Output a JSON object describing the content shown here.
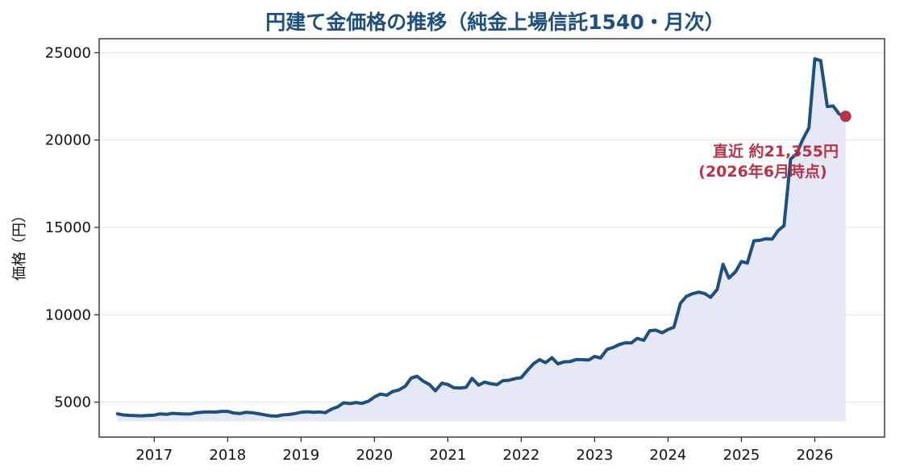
{
  "chart_data": {
    "type": "area",
    "title": "円建て金価格の推移（純金上場信託1540・月次）",
    "xlabel": "",
    "ylabel": "価格（円）",
    "xlim": [
      2016.25,
      2026.95
    ],
    "ylim": [
      3000,
      25800
    ],
    "y_ticks": [
      5000,
      10000,
      15000,
      20000,
      25000
    ],
    "x_ticks": [
      2017,
      2018,
      2019,
      2020,
      2021,
      2022,
      2023,
      2024,
      2025,
      2026
    ],
    "grid": "horizontal",
    "line_color": "#1d4f80",
    "fill_color": "#e6e8f5",
    "fill_baseline": 3900,
    "marker_color": "#b8324a",
    "x": [
      2016.5,
      2016.58,
      2016.67,
      2016.75,
      2016.83,
      2016.92,
      2017.0,
      2017.08,
      2017.17,
      2017.25,
      2017.33,
      2017.42,
      2017.5,
      2017.58,
      2017.67,
      2017.75,
      2017.83,
      2017.92,
      2018.0,
      2018.08,
      2018.17,
      2018.25,
      2018.33,
      2018.42,
      2018.5,
      2018.58,
      2018.67,
      2018.75,
      2018.83,
      2018.92,
      2019.0,
      2019.08,
      2019.17,
      2019.25,
      2019.33,
      2019.42,
      2019.5,
      2019.58,
      2019.67,
      2019.75,
      2019.83,
      2019.92,
      2020.0,
      2020.08,
      2020.17,
      2020.25,
      2020.33,
      2020.42,
      2020.5,
      2020.58,
      2020.67,
      2020.75,
      2020.83,
      2020.92,
      2021.0,
      2021.08,
      2021.17,
      2021.25,
      2021.33,
      2021.42,
      2021.5,
      2021.58,
      2021.67,
      2021.75,
      2021.83,
      2021.92,
      2022.0,
      2022.08,
      2022.17,
      2022.25,
      2022.33,
      2022.42,
      2022.5,
      2022.58,
      2022.67,
      2022.75,
      2022.83,
      2022.92,
      2023.0,
      2023.08,
      2023.17,
      2023.25,
      2023.33,
      2023.42,
      2023.5,
      2023.58,
      2023.67,
      2023.75,
      2023.83,
      2023.92,
      2024.0,
      2024.08,
      2024.17,
      2024.25,
      2024.33,
      2024.42,
      2024.5,
      2024.58,
      2024.67,
      2024.75,
      2024.83,
      2024.92,
      2025.0,
      2025.08,
      2025.17,
      2025.25,
      2025.33,
      2025.42,
      2025.5,
      2025.58,
      2025.67,
      2025.75,
      2025.83,
      2025.92,
      2026.0,
      2026.08,
      2026.17,
      2026.25,
      2026.33,
      2026.42
    ],
    "values": [
      4330,
      4270,
      4240,
      4230,
      4220,
      4240,
      4260,
      4330,
      4300,
      4360,
      4340,
      4320,
      4330,
      4400,
      4430,
      4440,
      4430,
      4470,
      4470,
      4380,
      4350,
      4420,
      4400,
      4340,
      4280,
      4220,
      4200,
      4270,
      4290,
      4350,
      4420,
      4450,
      4420,
      4440,
      4400,
      4610,
      4730,
      4960,
      4920,
      4980,
      4930,
      5060,
      5300,
      5460,
      5400,
      5610,
      5690,
      5910,
      6380,
      6480,
      6190,
      6010,
      5650,
      6090,
      6010,
      5830,
      5810,
      5850,
      6360,
      5970,
      6150,
      6060,
      6000,
      6230,
      6250,
      6350,
      6400,
      6800,
      7210,
      7430,
      7260,
      7540,
      7190,
      7300,
      7330,
      7440,
      7430,
      7410,
      7620,
      7530,
      8020,
      8130,
      8290,
      8400,
      8390,
      8650,
      8540,
      9090,
      9120,
      8970,
      9160,
      9280,
      10660,
      11050,
      11200,
      11300,
      11210,
      11000,
      11460,
      12890,
      12100,
      12460,
      13050,
      12960,
      14240,
      14260,
      14350,
      14330,
      14820,
      15100,
      18920,
      19200,
      19980,
      20700,
      24650,
      24550,
      21920,
      21950,
      21500,
      21355
    ],
    "annotation": {
      "line1": "直近 約21,355円",
      "line2": "(2026年6月時点)"
    }
  }
}
